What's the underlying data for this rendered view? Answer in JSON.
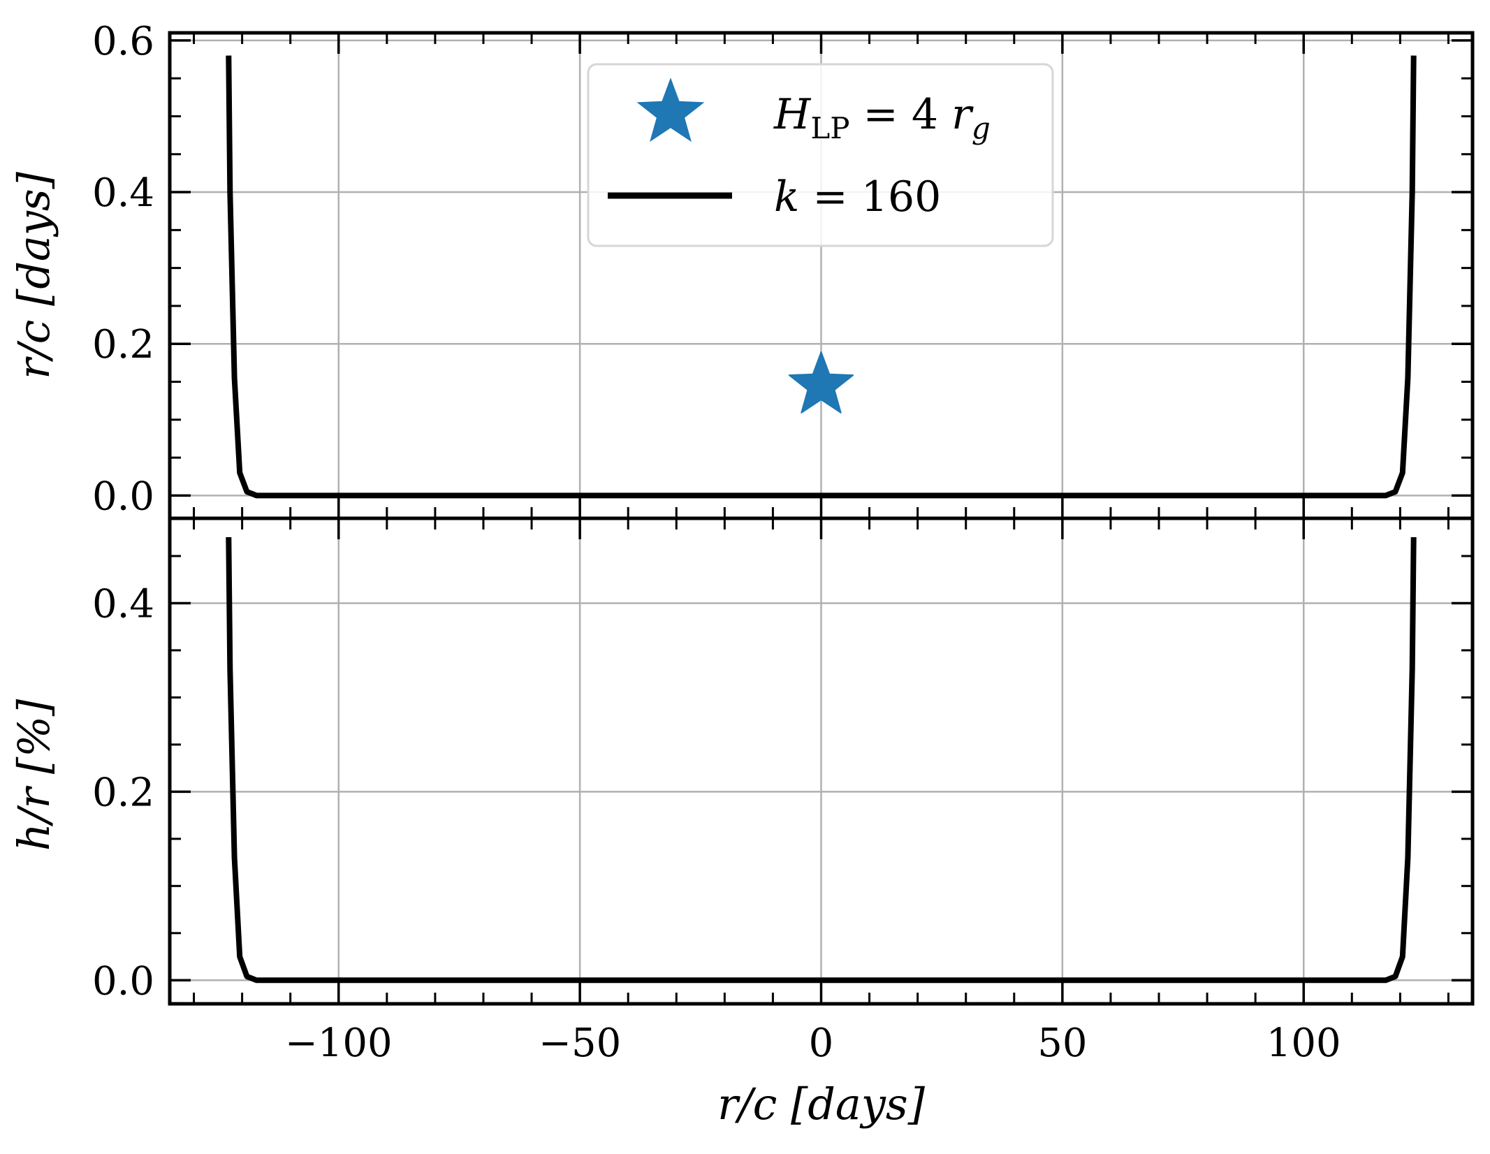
{
  "chart_data": [
    {
      "type": "line",
      "panel": "top",
      "ylabel": "r/c [days]",
      "xlim": [
        -135,
        135
      ],
      "ylim": [
        -0.03,
        0.61
      ],
      "y_ticks": [
        0.0,
        0.2,
        0.4,
        0.6
      ],
      "y_tick_labels": [
        "0.0",
        "0.2",
        "0.4",
        "0.6"
      ],
      "grid": true,
      "legend_position": "upper-center",
      "series": [
        {
          "name": "k = 160",
          "type": "line",
          "color": "#000000",
          "x": [
            -122.8,
            -122.5,
            -121.6,
            -120.5,
            -119.0,
            -117.0,
            -110,
            -100,
            -50,
            0,
            50,
            100,
            110,
            117.0,
            119.0,
            120.5,
            121.6,
            122.5,
            122.8
          ],
          "y": [
            0.58,
            0.4,
            0.155,
            0.03,
            0.005,
            0.0,
            0.0,
            0.0,
            0.0,
            0.0,
            0.0,
            0.0,
            0.0,
            0.0,
            0.005,
            0.03,
            0.155,
            0.4,
            0.58
          ]
        },
        {
          "name": "H_LP = 4 r_g",
          "type": "scatter",
          "marker": "star",
          "color": "#1f77b4",
          "x": [
            0
          ],
          "y": [
            0.145
          ]
        }
      ],
      "legend": [
        {
          "marker": "star",
          "color": "#1f77b4",
          "label_main": "H",
          "label_sub": "LP",
          "label_eq": " = 4 ",
          "label_var": "r",
          "label_var_sub": "g"
        },
        {
          "marker": "line",
          "color": "#000000",
          "label_main": "k",
          "label_sub": "",
          "label_eq": " = 160",
          "label_var": "",
          "label_var_sub": ""
        }
      ]
    },
    {
      "type": "line",
      "panel": "bottom",
      "xlabel": "r/c [days]",
      "ylabel": "h/r [%]",
      "xlim": [
        -135,
        135
      ],
      "ylim": [
        -0.025,
        0.49
      ],
      "x_ticks": [
        -100,
        -50,
        0,
        50,
        100
      ],
      "x_tick_labels": [
        "−100",
        "−50",
        "0",
        "50",
        "100"
      ],
      "y_ticks": [
        0.0,
        0.2,
        0.4
      ],
      "y_tick_labels": [
        "0.0",
        "0.2",
        "0.4"
      ],
      "grid": true,
      "series": [
        {
          "name": "k = 160",
          "type": "line",
          "color": "#000000",
          "x": [
            -122.8,
            -122.5,
            -121.6,
            -120.5,
            -119.0,
            -117.0,
            -110,
            -100,
            -50,
            0,
            50,
            100,
            110,
            117.0,
            119.0,
            120.5,
            121.6,
            122.5,
            122.8
          ],
          "y": [
            0.47,
            0.33,
            0.13,
            0.025,
            0.004,
            0.0,
            0.0,
            0.0,
            0.0,
            0.0,
            0.0,
            0.0,
            0.0,
            0.0,
            0.004,
            0.025,
            0.13,
            0.33,
            0.47
          ]
        }
      ]
    }
  ]
}
